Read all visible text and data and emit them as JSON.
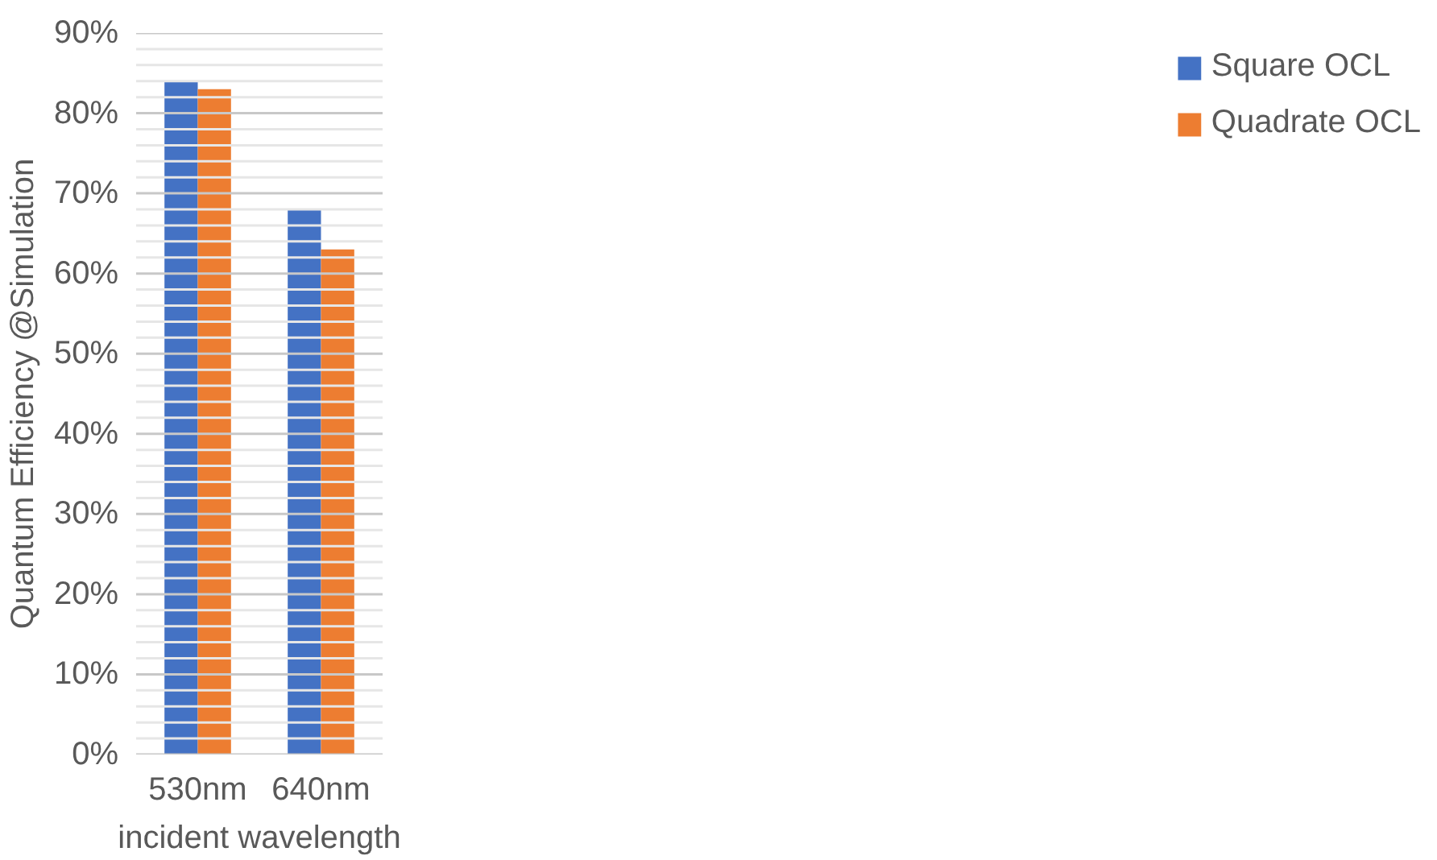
{
  "chart_data": {
    "type": "bar",
    "xlabel": "incident wavelength",
    "ylabel": "Quantum Efficiency @Simulation",
    "categories": [
      "530nm",
      "640nm"
    ],
    "series": [
      {
        "name": "Square OCL",
        "color": "#4472c4",
        "values": [
          84,
          68
        ]
      },
      {
        "name": "Quadrate OCL",
        "color": "#ed7d31",
        "values": [
          83,
          63
        ]
      }
    ],
    "ylim": [
      0,
      90
    ],
    "yticks": [
      {
        "value": 0,
        "label": "0%"
      },
      {
        "value": 2,
        "label": null
      },
      {
        "value": 4,
        "label": null
      },
      {
        "value": 6,
        "label": null
      },
      {
        "value": 8,
        "label": null
      },
      {
        "value": 10,
        "label": "10%"
      },
      {
        "value": 12,
        "label": null
      },
      {
        "value": 14,
        "label": null
      },
      {
        "value": 16,
        "label": null
      },
      {
        "value": 18,
        "label": null
      },
      {
        "value": 20,
        "label": "20%"
      },
      {
        "value": 22,
        "label": null
      },
      {
        "value": 24,
        "label": null
      },
      {
        "value": 26,
        "label": null
      },
      {
        "value": 28,
        "label": null
      },
      {
        "value": 30,
        "label": "30%"
      },
      {
        "value": 32,
        "label": null
      },
      {
        "value": 34,
        "label": null
      },
      {
        "value": 36,
        "label": null
      },
      {
        "value": 38,
        "label": null
      },
      {
        "value": 40,
        "label": "40%"
      },
      {
        "value": 42,
        "label": null
      },
      {
        "value": 44,
        "label": null
      },
      {
        "value": 46,
        "label": null
      },
      {
        "value": 48,
        "label": null
      },
      {
        "value": 50,
        "label": "50%"
      },
      {
        "value": 52,
        "label": null
      },
      {
        "value": 54,
        "label": null
      },
      {
        "value": 56,
        "label": null
      },
      {
        "value": 58,
        "label": null
      },
      {
        "value": 60,
        "label": "60%"
      },
      {
        "value": 62,
        "label": null
      },
      {
        "value": 64,
        "label": null
      },
      {
        "value": 66,
        "label": null
      },
      {
        "value": 68,
        "label": null
      },
      {
        "value": 70,
        "label": "70%"
      },
      {
        "value": 72,
        "label": null
      },
      {
        "value": 74,
        "label": null
      },
      {
        "value": 76,
        "label": null
      },
      {
        "value": 78,
        "label": null
      },
      {
        "value": 80,
        "label": "80%"
      },
      {
        "value": 82,
        "label": null
      },
      {
        "value": 84,
        "label": null
      },
      {
        "value": 86,
        "label": null
      },
      {
        "value": 88,
        "label": null
      },
      {
        "value": 90,
        "label": "90%"
      }
    ],
    "grid": "y",
    "legend": "right"
  }
}
